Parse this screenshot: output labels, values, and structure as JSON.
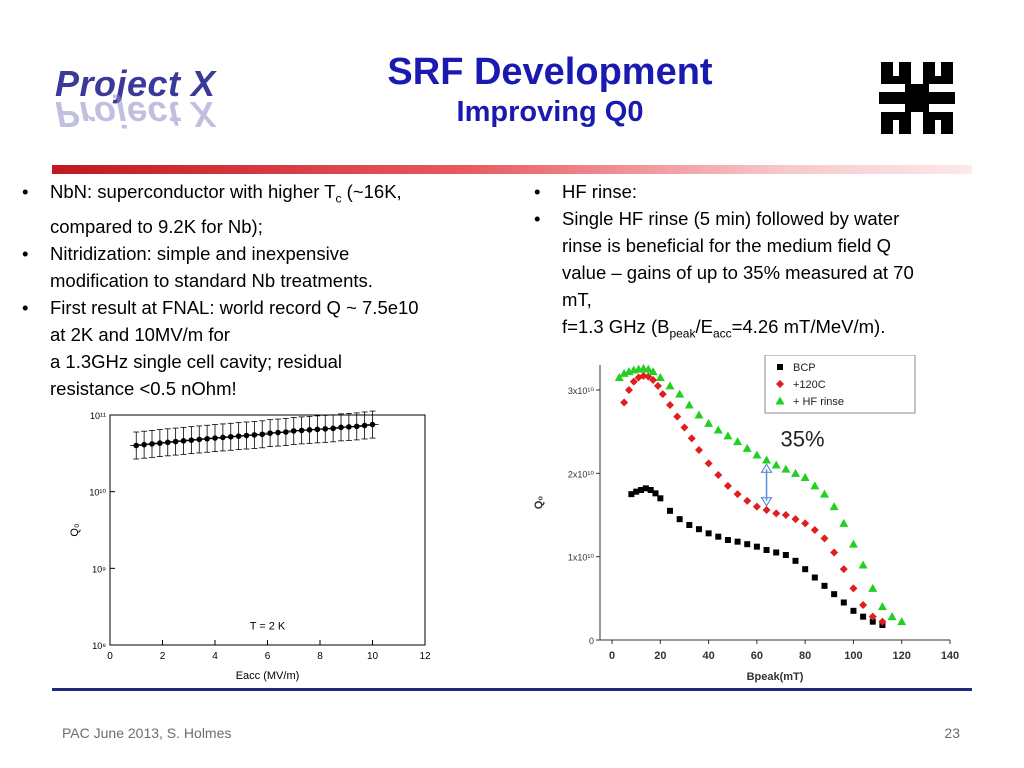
{
  "logo": {
    "text": "Project X"
  },
  "title": {
    "main": "SRF Development",
    "subtitle": "Improving Q0"
  },
  "icons": {
    "logo": "fermilab-logo-icon"
  },
  "colors": {
    "title": "#1a1ab0",
    "logo": "#3b3a9a",
    "rule_top": "#c0181f",
    "rule_bottom": "#1f2a7a"
  },
  "bullet_char": "•",
  "left_bullets": [
    {
      "pre": "NbN: superconductor with higher T",
      "sub": "c",
      "post": " (~16K,",
      "line2": "compared to 9.2K for Nb);"
    },
    {
      "line1": "Nitridization: simple and inexpensive",
      "line2": "modification to standard Nb treatments."
    },
    {
      "line1": "First result at FNAL: world record Q ~ 7.5e10",
      "line2": "at 2K and 10MV/m for",
      "line3": "a 1.3GHz  single cell cavity; residual",
      "line4": "resistance <0.5 nOhm!"
    }
  ],
  "right_bullets": [
    {
      "line1": "HF rinse:"
    },
    {
      "line1": "Single HF rinse (5 min) followed by water",
      "line2": "rinse is beneficial for the medium field Q",
      "line3": "value – gains of up to 35% measured at 70",
      "line4": "mT,"
    }
  ],
  "right_note": {
    "pre": "f=1.3 GHz (B",
    "sub1": "peak",
    "mid": "/E",
    "sub2": "acc",
    "post": "=4.26 mT/MeV/m)."
  },
  "footer": {
    "left": "PAC June 2013, S. Holmes",
    "page": "23"
  },
  "chart_data": [
    {
      "type": "scatter",
      "xlabel": "Eacc (MV/m)",
      "ylabel": "Q₀",
      "log_y": true,
      "xlim": [
        0,
        12
      ],
      "ylim": [
        100000000.0,
        100000000000.0
      ],
      "x_ticks": [
        "0",
        "2",
        "4",
        "6",
        "8",
        "10",
        "12"
      ],
      "y_ticks": [
        "10⁸",
        "10⁹",
        "10¹⁰",
        "10¹¹"
      ],
      "annotation": "T = 2 K",
      "error_bars": true,
      "x": [
        1.0,
        1.3,
        1.6,
        1.9,
        2.2,
        2.5,
        2.8,
        3.1,
        3.4,
        3.7,
        4.0,
        4.3,
        4.6,
        4.9,
        5.2,
        5.5,
        5.8,
        6.1,
        6.4,
        6.7,
        7.0,
        7.3,
        7.6,
        7.9,
        8.2,
        8.5,
        8.8,
        9.1,
        9.4,
        9.7,
        10.0
      ],
      "y": [
        40000000000.0,
        41000000000.0,
        42000000000.0,
        43000000000.0,
        44000000000.0,
        45000000000.0,
        46000000000.0,
        47000000000.0,
        48000000000.0,
        49000000000.0,
        50000000000.0,
        51000000000.0,
        52000000000.0,
        53000000000.0,
        54000000000.0,
        55000000000.0,
        56000000000.0,
        58000000000.0,
        59000000000.0,
        60000000000.0,
        62000000000.0,
        63000000000.0,
        64000000000.0,
        65000000000.0,
        66000000000.0,
        67000000000.0,
        69000000000.0,
        70000000000.0,
        71000000000.0,
        73000000000.0,
        75000000000.0
      ]
    },
    {
      "type": "scatter",
      "xlabel": "Bpeak(mT)",
      "ylabel": "Q₀",
      "xlim": [
        -5,
        140
      ],
      "ylim": [
        0,
        33000000000.0
      ],
      "x_ticks": [
        "0",
        "20",
        "40",
        "60",
        "80",
        "100",
        "120",
        "140"
      ],
      "y_ticks": [
        "0",
        "1x10¹⁰",
        "2x10¹⁰",
        "3x10¹⁰"
      ],
      "legend_position": "top-right",
      "annotation": "35%",
      "series": [
        {
          "name": "BCP",
          "color": "#000000",
          "marker": "square",
          "x": [
            8,
            10,
            12,
            14,
            16,
            18,
            20,
            24,
            28,
            32,
            36,
            40,
            44,
            48,
            52,
            56,
            60,
            64,
            68,
            72,
            76,
            80,
            84,
            88,
            92,
            96,
            100,
            104,
            108,
            112
          ],
          "y": [
            17500000000.0,
            17800000000.0,
            18000000000.0,
            18200000000.0,
            18000000000.0,
            17600000000.0,
            17000000000.0,
            15500000000.0,
            14500000000.0,
            13800000000.0,
            13300000000.0,
            12800000000.0,
            12400000000.0,
            12000000000.0,
            11800000000.0,
            11500000000.0,
            11200000000.0,
            10800000000.0,
            10500000000.0,
            10200000000.0,
            9500000000.0,
            8500000000.0,
            7500000000.0,
            6500000000.0,
            5500000000.0,
            4500000000.0,
            3500000000.0,
            2800000000.0,
            2200000000.0,
            1800000000.0
          ]
        },
        {
          "name": "+120C",
          "color": "#e01e1e",
          "marker": "diamond",
          "x": [
            5,
            7,
            9,
            11,
            13,
            15,
            17,
            19,
            21,
            24,
            27,
            30,
            33,
            36,
            40,
            44,
            48,
            52,
            56,
            60,
            64,
            68,
            72,
            76,
            80,
            84,
            88,
            92,
            96,
            100,
            104,
            108,
            112
          ],
          "y": [
            28500000000.0,
            30000000000.0,
            31000000000.0,
            31500000000.0,
            31700000000.0,
            31600000000.0,
            31200000000.0,
            30500000000.0,
            29500000000.0,
            28200000000.0,
            26800000000.0,
            25500000000.0,
            24200000000.0,
            22800000000.0,
            21200000000.0,
            19800000000.0,
            18500000000.0,
            17500000000.0,
            16700000000.0,
            16000000000.0,
            15600000000.0,
            15200000000.0,
            15000000000.0,
            14500000000.0,
            14000000000.0,
            13200000000.0,
            12200000000.0,
            10500000000.0,
            8500000000.0,
            6200000000.0,
            4200000000.0,
            2800000000.0,
            2200000000.0
          ]
        },
        {
          "name": "+ HF rinse",
          "color": "#22d022",
          "marker": "triangle",
          "x": [
            3,
            5,
            7,
            9,
            11,
            13,
            15,
            17,
            20,
            24,
            28,
            32,
            36,
            40,
            44,
            48,
            52,
            56,
            60,
            64,
            68,
            72,
            76,
            80,
            84,
            88,
            92,
            96,
            100,
            104,
            108,
            112,
            116,
            120
          ],
          "y": [
            31500000000.0,
            32000000000.0,
            32200000000.0,
            32400000000.0,
            32500000000.0,
            32600000000.0,
            32500000000.0,
            32200000000.0,
            31500000000.0,
            30500000000.0,
            29500000000.0,
            28200000000.0,
            27000000000.0,
            26000000000.0,
            25200000000.0,
            24500000000.0,
            23800000000.0,
            23000000000.0,
            22200000000.0,
            21600000000.0,
            21000000000.0,
            20500000000.0,
            20000000000.0,
            19500000000.0,
            18500000000.0,
            17500000000.0,
            16000000000.0,
            14000000000.0,
            11500000000.0,
            9000000000.0,
            6200000000.0,
            4000000000.0,
            2800000000.0,
            2200000000.0
          ]
        }
      ]
    }
  ]
}
